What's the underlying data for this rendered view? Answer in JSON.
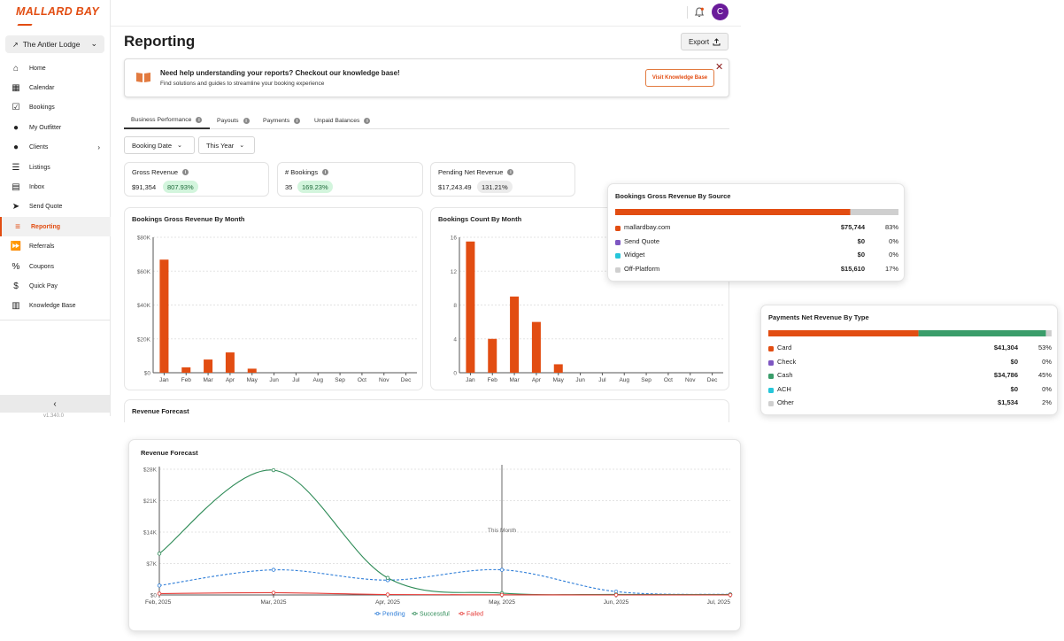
{
  "brand": {
    "logo": "MALLARD BAY",
    "accent": "#e24d12"
  },
  "sidebar": {
    "lodge": "The Antler Lodge",
    "items": [
      {
        "label": "Home",
        "icon": "home-icon"
      },
      {
        "label": "Calendar",
        "icon": "calendar-icon"
      },
      {
        "label": "Bookings",
        "icon": "check-square-icon"
      },
      {
        "label": "My Outfitter",
        "icon": "person-icon"
      },
      {
        "label": "Clients",
        "icon": "group-icon"
      },
      {
        "label": "Listings",
        "icon": "list-icon"
      },
      {
        "label": "Inbox",
        "icon": "inbox-icon"
      },
      {
        "label": "Send Quote",
        "icon": "send-icon"
      },
      {
        "label": "Reporting",
        "icon": "report-icon"
      },
      {
        "label": "Referrals",
        "icon": "fast-forward-icon"
      },
      {
        "label": "Coupons",
        "icon": "percent-icon"
      },
      {
        "label": "Quick Pay",
        "icon": "dollar-icon"
      },
      {
        "label": "Knowledge Base",
        "icon": "book-icon"
      }
    ],
    "active": "Reporting",
    "version": "v1.340.0"
  },
  "header": {
    "avatar_initial": "C",
    "avatar_color": "#6a1b9a"
  },
  "page": {
    "title": "Reporting",
    "export_label": "Export"
  },
  "banner": {
    "title": "Need help understanding your reports? Checkout our knowledge base!",
    "subtitle": "Find solutions and guides to streamline your booking experience",
    "button": "Visit Knowledge Base"
  },
  "tabs": [
    "Business Performance",
    "Payouts",
    "Payments",
    "Unpaid Balances"
  ],
  "filters": {
    "date_field": "Booking Date",
    "period": "This Year"
  },
  "kpis": [
    {
      "label": "Gross Revenue",
      "value": "$91,354",
      "change": "807.93%"
    },
    {
      "label": "# Bookings",
      "value": "35",
      "change": "169.23%"
    },
    {
      "label": "Pending Net Revenue",
      "value": "$17,243.49",
      "change": "131.21%"
    }
  ],
  "months": [
    "Jan",
    "Feb",
    "Mar",
    "Apr",
    "May",
    "Jun",
    "Jul",
    "Aug",
    "Sep",
    "Oct",
    "Nov",
    "Dec"
  ],
  "chart_data": [
    {
      "type": "bar",
      "title": "Bookings Gross Revenue By Month",
      "categories": [
        "Jan",
        "Feb",
        "Mar",
        "Apr",
        "May",
        "Jun",
        "Jul",
        "Aug",
        "Sep",
        "Oct",
        "Nov",
        "Dec"
      ],
      "values": [
        66800,
        3200,
        7800,
        12000,
        2400,
        0,
        0,
        0,
        0,
        0,
        0,
        0
      ],
      "ylim": [
        0,
        80000
      ],
      "yticks": [
        "$0",
        "$20K",
        "$40K",
        "$60K",
        "$80K"
      ],
      "color": "#e24d12"
    },
    {
      "type": "bar",
      "title": "Bookings Count By Month",
      "categories": [
        "Jan",
        "Feb",
        "Mar",
        "Apr",
        "May",
        "Jun",
        "Jul",
        "Aug",
        "Sep",
        "Oct",
        "Nov",
        "Dec"
      ],
      "values": [
        15.5,
        4,
        9,
        6,
        1,
        0,
        0,
        0,
        0,
        0,
        0,
        0
      ],
      "ylim": [
        0,
        16
      ],
      "yticks": [
        "0",
        "4",
        "8",
        "12",
        "16"
      ],
      "color": "#e24d12"
    },
    {
      "type": "line",
      "title": "Revenue Forecast",
      "x": [
        "Feb, 2025",
        "Mar, 2025",
        "Apr, 2025",
        "May, 2025",
        "Jun, 2025",
        "Jul, 2025"
      ],
      "series": [
        {
          "name": "Pending",
          "values": [
            2100,
            5600,
            3300,
            5600,
            750,
            120
          ],
          "color": "#2f7ed8"
        },
        {
          "name": "Successful",
          "values": [
            9200,
            27800,
            3800,
            400,
            120,
            100
          ],
          "color": "#2e8b57"
        },
        {
          "name": "Failed",
          "values": [
            300,
            500,
            100,
            30,
            0,
            0
          ],
          "color": "#e53935"
        }
      ],
      "ylim": [
        0,
        28000
      ],
      "yticks": [
        "$0",
        "$7K",
        "$14K",
        "$21K",
        "$28K"
      ],
      "annotation": "This Month"
    }
  ],
  "revenue_forecast_card_title": "Revenue Forecast",
  "source_popup": {
    "title": "Bookings Gross Revenue By Source",
    "bar_fill_fraction": 0.83,
    "rows": [
      {
        "name": "mallardbay.com",
        "amount": "$75,744",
        "pct": "83%",
        "color": "#e24d12"
      },
      {
        "name": "Send Quote",
        "amount": "$0",
        "pct": "0%",
        "color": "#7e57c2"
      },
      {
        "name": "Widget",
        "amount": "$0",
        "pct": "0%",
        "color": "#26c6da"
      },
      {
        "name": "Off-Platform",
        "amount": "$15,610",
        "pct": "17%",
        "color": "#cfcfcf"
      }
    ]
  },
  "payments_popup": {
    "title": "Payments Net Revenue By Type",
    "bar_fractions": [
      0.53,
      0.45,
      0.02
    ],
    "rows": [
      {
        "name": "Card",
        "amount": "$41,304",
        "pct": "53%",
        "color": "#e24d12"
      },
      {
        "name": "Check",
        "amount": "$0",
        "pct": "0%",
        "color": "#7e57c2"
      },
      {
        "name": "Cash",
        "amount": "$34,786",
        "pct": "45%",
        "color": "#3a9d6a"
      },
      {
        "name": "ACH",
        "amount": "$0",
        "pct": "0%",
        "color": "#26c6da"
      },
      {
        "name": "Other",
        "amount": "$1,534",
        "pct": "2%",
        "color": "#cfcfcf"
      }
    ]
  }
}
